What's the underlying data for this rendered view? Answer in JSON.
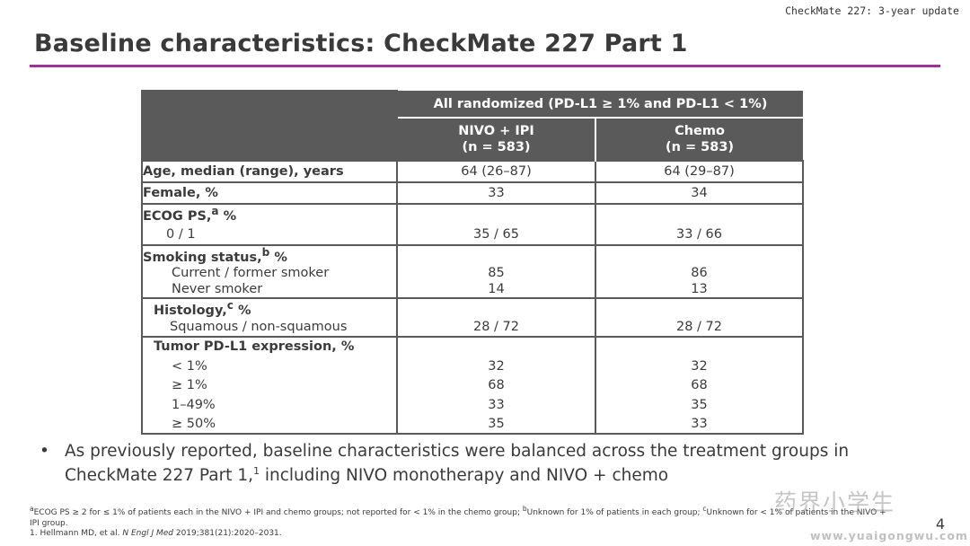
{
  "header": {
    "top_note": "CheckMate 227: 3-year update",
    "title": "Baseline characteristics: CheckMate 227 Part 1"
  },
  "table": {
    "group_header": "All randomized (PD-L1 ≥ 1% and PD-L1 < 1%)",
    "arm1_name": "NIVO + IPI",
    "arm1_n": "(n = 583)",
    "arm2_name": "Chemo",
    "arm2_n": "(n = 583)",
    "age": {
      "label": "Age, median (range), years",
      "a1": "64 (26–87)",
      "a2": "64 (29–87)"
    },
    "female": {
      "label": "Female, %",
      "a1": "33",
      "a2": "34"
    },
    "ecog": {
      "label": "ECOG PS,",
      "sup": "a",
      "suffix": " %",
      "sub_label": "0 / 1",
      "a1": "35 / 65",
      "a2": "33 / 66"
    },
    "smoking": {
      "label": "Smoking status,",
      "sup": "b",
      "suffix": " %",
      "rows": [
        {
          "label": "Current / former smoker",
          "a1": "85",
          "a2": "86"
        },
        {
          "label": "Never smoker",
          "a1": "14",
          "a2": "13"
        }
      ]
    },
    "histology": {
      "label": "Histology,",
      "sup": "c",
      "suffix": " %",
      "sub_label": "Squamous / non-squamous",
      "a1": "28 / 72",
      "a2": "28 / 72"
    },
    "pdl1": {
      "label": "Tumor PD-L1 expression, %",
      "rows": [
        {
          "label": "< 1%",
          "a1": "32",
          "a2": "32"
        },
        {
          "label": "≥ 1%",
          "a1": "68",
          "a2": "68"
        },
        {
          "label": "1–49%",
          "a1": "33",
          "a2": "35"
        },
        {
          "label": "≥ 50%",
          "a1": "35",
          "a2": "33"
        }
      ]
    }
  },
  "bullet": {
    "symbol": "•",
    "text_a": "As previously reported, baseline characteristics were balanced across the treatment groups in CheckMate 227 Part 1,",
    "sup": "1",
    "text_b": " including NIVO monotherapy and NIVO + chemo"
  },
  "footnotes": {
    "a_mark": "a",
    "a_text": "ECOG PS ≥ 2 for ≤ 1% of patients each in the NIVO + IPI and chemo groups; not reported for < 1% in the chemo group; ",
    "b_mark": "b",
    "b_text": "Unknown for 1% of patients in each group; ",
    "c_mark": "c",
    "c_text": "Unknown for < 1% of patients in the NIVO + IPI group.",
    "ref_pre": "1. Hellmann MD, et al. ",
    "ref_journal": "N Engl J Med",
    "ref_post": " 2019;381(21):2020–2031."
  },
  "page_number": "4",
  "watermark": {
    "logo_text": "药界小学生",
    "url": "www.yuaigongwu.com"
  }
}
